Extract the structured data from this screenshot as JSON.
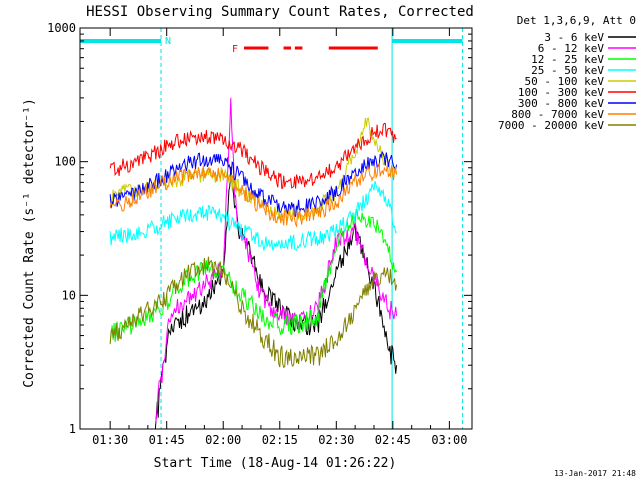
{
  "chart_data": {
    "type": "line",
    "title": "HESSI Observing Summary Count Rates, Corrected",
    "xlabel": "Start Time (18-Aug-14 01:26:22)",
    "ylabel": "Corrected Count Rate (s⁻¹ detector⁻¹)",
    "y_scale": "log",
    "ylim": [
      1,
      1000
    ],
    "xlim_minutes": [
      82,
      186
    ],
    "x_ticks": [
      {
        "t": 90,
        "label": "01:30"
      },
      {
        "t": 105,
        "label": "01:45"
      },
      {
        "t": 120,
        "label": "02:00"
      },
      {
        "t": 135,
        "label": "02:15"
      },
      {
        "t": 150,
        "label": "02:30"
      },
      {
        "t": 165,
        "label": "02:45"
      },
      {
        "t": 180,
        "label": "03:00"
      }
    ],
    "y_ticks": [
      {
        "v": 1,
        "label": "1"
      },
      {
        "v": 10,
        "label": "10"
      },
      {
        "v": 100,
        "label": "100"
      },
      {
        "v": 1000,
        "label": "1000"
      }
    ],
    "legend_header": "Det 1,3,6,9, Att 0",
    "legend_placement": "right",
    "markers": [
      {
        "label": "N",
        "color": "#00e5e5"
      },
      {
        "label": "F",
        "color": "#ff0000"
      }
    ],
    "night_bands": [
      [
        82,
        103.5
      ],
      [
        164.8,
        183.5
      ]
    ],
    "flare_bands": [
      [
        125.5,
        132
      ],
      [
        136,
        138
      ],
      [
        139,
        141
      ],
      [
        148,
        161
      ]
    ],
    "vertical_lines": [
      {
        "t": 103.5,
        "style": "dashed"
      },
      {
        "t": 164.8,
        "style": "solid"
      },
      {
        "t": 183.5,
        "style": "dashed"
      }
    ],
    "series": [
      {
        "name": "3 - 6 keV",
        "color": "#000000",
        "x": [
          102,
          104,
          106,
          110,
          115,
          120,
          122,
          124,
          126,
          128,
          130,
          135,
          140,
          145,
          150,
          155,
          160,
          164,
          166
        ],
        "y": [
          1.0,
          2.5,
          6,
          7,
          9,
          15,
          90,
          30,
          25,
          18,
          12,
          8,
          6,
          6,
          15,
          30,
          12,
          4,
          3
        ]
      },
      {
        "name": "6 - 12 keV",
        "color": "#ff00ff",
        "x": [
          102,
          104,
          106,
          110,
          115,
          120,
          122,
          123,
          124,
          126,
          128,
          130,
          135,
          140,
          145,
          150,
          155,
          160,
          164,
          166
        ],
        "y": [
          1.2,
          3,
          7,
          9,
          12,
          16,
          290,
          60,
          30,
          25,
          15,
          10,
          7,
          6,
          8,
          25,
          30,
          13,
          8,
          7
        ]
      },
      {
        "name": "12 - 25 keV",
        "color": "#00ff00",
        "x": [
          90,
          95,
          100,
          105,
          110,
          115,
          120,
          125,
          130,
          135,
          140,
          145,
          150,
          155,
          160,
          163,
          166
        ],
        "y": [
          5,
          6,
          7,
          9,
          13,
          16,
          15,
          10,
          7,
          6,
          6,
          7,
          25,
          40,
          35,
          25,
          15
        ]
      },
      {
        "name": "25 - 50 keV",
        "color": "#00ffff",
        "x": [
          90,
          95,
          100,
          105,
          110,
          115,
          120,
          125,
          130,
          135,
          140,
          145,
          150,
          155,
          160,
          163,
          166
        ],
        "y": [
          27,
          28,
          30,
          35,
          40,
          42,
          38,
          30,
          25,
          25,
          25,
          27,
          30,
          40,
          65,
          55,
          30
        ]
      },
      {
        "name": "50 - 100 keV",
        "color": "#cccc00",
        "x": [
          90,
          95,
          100,
          105,
          110,
          115,
          120,
          125,
          130,
          135,
          140,
          145,
          150,
          155,
          158,
          160,
          163,
          166
        ],
        "y": [
          55,
          60,
          65,
          70,
          75,
          80,
          80,
          60,
          50,
          42,
          42,
          45,
          60,
          120,
          200,
          150,
          100,
          80
        ]
      },
      {
        "name": "100 - 300 keV",
        "color": "#ff0000",
        "x": [
          90,
          95,
          100,
          105,
          110,
          115,
          120,
          125,
          130,
          135,
          140,
          145,
          150,
          155,
          160,
          163,
          166
        ],
        "y": [
          85,
          95,
          110,
          130,
          150,
          155,
          150,
          120,
          90,
          72,
          72,
          75,
          90,
          130,
          165,
          170,
          150
        ]
      },
      {
        "name": "300 - 800 keV",
        "color": "#0000ff",
        "x": [
          90,
          95,
          100,
          105,
          110,
          115,
          120,
          125,
          130,
          135,
          140,
          145,
          150,
          155,
          160,
          163,
          166
        ],
        "y": [
          50,
          55,
          65,
          80,
          95,
          105,
          100,
          75,
          55,
          45,
          45,
          48,
          60,
          85,
          100,
          105,
          95
        ]
      },
      {
        "name": "800 - 7000 keV",
        "color": "#ff8000",
        "x": [
          90,
          95,
          100,
          105,
          110,
          115,
          120,
          125,
          130,
          135,
          140,
          145,
          150,
          155,
          160,
          163,
          166
        ],
        "y": [
          45,
          50,
          60,
          70,
          80,
          85,
          80,
          60,
          45,
          38,
          38,
          40,
          50,
          70,
          85,
          90,
          80
        ]
      },
      {
        "name": "7000 - 20000 keV",
        "color": "#808000",
        "x": [
          90,
          95,
          100,
          105,
          110,
          115,
          120,
          125,
          130,
          135,
          140,
          145,
          150,
          155,
          160,
          163,
          166
        ],
        "y": [
          5,
          6,
          8,
          10,
          14,
          17,
          15,
          8,
          5,
          3.5,
          3.5,
          3.5,
          4.5,
          8,
          13,
          15,
          12
        ]
      }
    ]
  },
  "timestamp": "13-Jan-2017 21:48"
}
